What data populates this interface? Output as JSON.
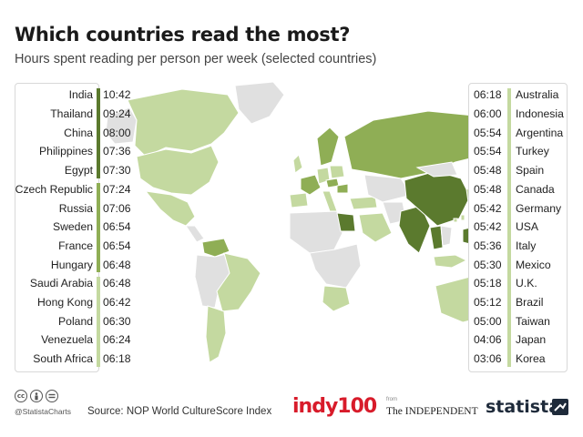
{
  "header": {
    "title": "Which countries read the most?",
    "subtitle": "Hours spent reading per person per week (selected countries)"
  },
  "colors": {
    "top_tier": "#5b7a2e",
    "mid_tier": "#8fae55",
    "low_tier": "#c4d9a0",
    "no_data": "#e0e0e0"
  },
  "chart_data": {
    "type": "table",
    "title": "Which countries read the most?",
    "subtitle": "Hours spent reading per person per week (selected countries)",
    "unit": "hh:mm",
    "left": [
      {
        "country": "India",
        "time": "10:42",
        "tier": "top"
      },
      {
        "country": "Thailand",
        "time": "09:24",
        "tier": "top"
      },
      {
        "country": "China",
        "time": "08:00",
        "tier": "top"
      },
      {
        "country": "Philippines",
        "time": "07:36",
        "tier": "top"
      },
      {
        "country": "Egypt",
        "time": "07:30",
        "tier": "top"
      },
      {
        "country": "Czech Republic",
        "time": "07:24",
        "tier": "mid"
      },
      {
        "country": "Russia",
        "time": "07:06",
        "tier": "mid"
      },
      {
        "country": "Sweden",
        "time": "06:54",
        "tier": "mid"
      },
      {
        "country": "France",
        "time": "06:54",
        "tier": "mid"
      },
      {
        "country": "Hungary",
        "time": "06:48",
        "tier": "mid"
      },
      {
        "country": "Saudi Arabia",
        "time": "06:48",
        "tier": "low"
      },
      {
        "country": "Hong Kong",
        "time": "06:42",
        "tier": "low"
      },
      {
        "country": "Poland",
        "time": "06:30",
        "tier": "low"
      },
      {
        "country": "Venezuela",
        "time": "06:24",
        "tier": "low"
      },
      {
        "country": "South Africa",
        "time": "06:18",
        "tier": "low"
      }
    ],
    "right": [
      {
        "country": "Australia",
        "time": "06:18",
        "tier": "low"
      },
      {
        "country": "Indonesia",
        "time": "06:00",
        "tier": "low"
      },
      {
        "country": "Argentina",
        "time": "05:54",
        "tier": "low"
      },
      {
        "country": "Turkey",
        "time": "05:54",
        "tier": "low"
      },
      {
        "country": "Spain",
        "time": "05:48",
        "tier": "low"
      },
      {
        "country": "Canada",
        "time": "05:48",
        "tier": "low"
      },
      {
        "country": "Germany",
        "time": "05:42",
        "tier": "low"
      },
      {
        "country": "USA",
        "time": "05:42",
        "tier": "low"
      },
      {
        "country": "Italy",
        "time": "05:36",
        "tier": "low"
      },
      {
        "country": "Mexico",
        "time": "05:30",
        "tier": "low"
      },
      {
        "country": "U.K.",
        "time": "05:18",
        "tier": "low"
      },
      {
        "country": "Brazil",
        "time": "05:12",
        "tier": "low"
      },
      {
        "country": "Taiwan",
        "time": "05:00",
        "tier": "low"
      },
      {
        "country": "Japan",
        "time": "04:06",
        "tier": "low"
      },
      {
        "country": "Korea",
        "time": "03:06",
        "tier": "low"
      }
    ]
  },
  "footer": {
    "cc_icons": [
      "cc-icon",
      "by-icon",
      "nd-icon"
    ],
    "cc_label": "cc",
    "handle": "@StatistaCharts",
    "source": "Source: NOP World CultureScore Index",
    "indy_logo": "indy100",
    "from_label": "from",
    "independent_logo": "The INDEPENDENT",
    "statista_logo": "statista"
  }
}
